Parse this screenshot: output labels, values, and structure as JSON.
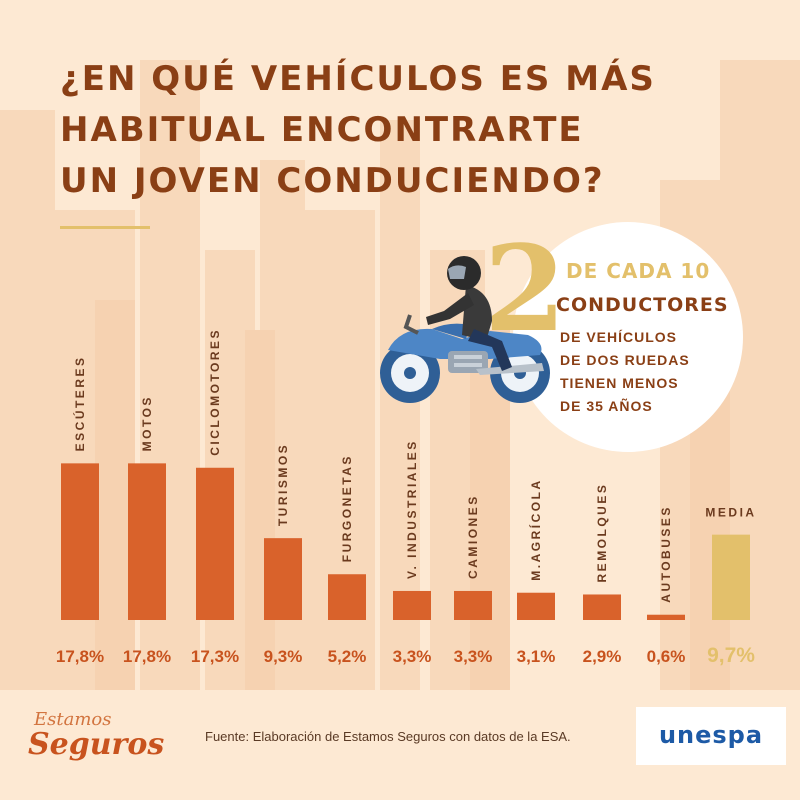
{
  "title_lines": [
    "¿EN QUÉ VEHÍCULOS ES MÁS",
    "HABITUAL ENCONTRARTE",
    "UN JOVEN CONDUCIENDO?"
  ],
  "stat": {
    "big_number": "2",
    "line1": "DE CADA 10",
    "line2": "CONDUCTORES",
    "small_lines": [
      "DE VEHÍCULOS",
      "DE DOS RUEDAS",
      "TIENEN MENOS",
      "DE 35 AÑOS"
    ]
  },
  "chart_data": {
    "type": "bar",
    "title": "",
    "xlabel": "",
    "ylabel": "",
    "ylim": [
      0,
      20
    ],
    "categories": [
      "ESCÚTERES",
      "MOTOS",
      "CICLOMOTORES",
      "TURISMOS",
      "FURGONETAS",
      "V. INDUSTRIALES",
      "CAMIONES",
      "M.AGRÍCOLA",
      "REMOLQUES",
      "AUTOBUSES"
    ],
    "values": [
      17.8,
      17.8,
      17.3,
      9.3,
      5.2,
      3.3,
      3.3,
      3.1,
      2.9,
      0.6
    ],
    "value_labels": [
      "17,8%",
      "17,8%",
      "17,3%",
      "9,3%",
      "5,2%",
      "3,3%",
      "3,3%",
      "3,1%",
      "2,9%",
      "0,6%"
    ],
    "average": {
      "label": "MEDIA",
      "value": 9.7,
      "value_label": "9,7%"
    },
    "grid": false,
    "legend": "none"
  },
  "colors": {
    "bar": "#d9622b",
    "average_bar": "#e3c06b",
    "title": "#8a3f15",
    "background": "#fde9d3"
  },
  "footer": {
    "logo_top": "Estamos",
    "logo_bottom": "Seguros",
    "source": "Fuente: Elaboración de Estamos Seguros con datos de la ESA.",
    "brand": "unespa"
  },
  "icons": {
    "motorcycle": "motorcycle-rider-icon"
  }
}
